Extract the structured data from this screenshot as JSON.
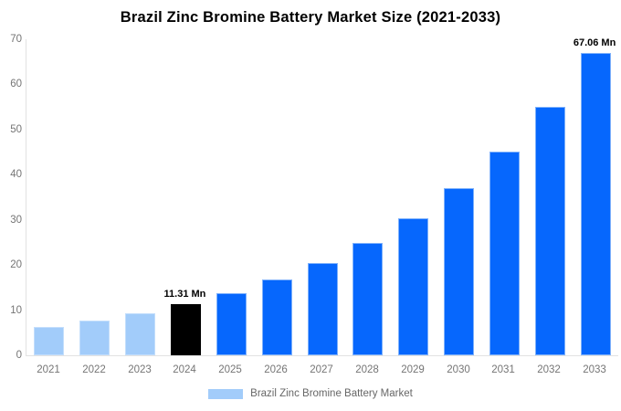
{
  "title": "Brazil Zinc Bromine Battery Market Size (2021-2033)",
  "legend": {
    "label": "Brazil Zinc Bromine Battery Market",
    "swatch_color": "#A2CCFA"
  },
  "colors": {
    "historical_bar": "#A2CCFA",
    "historical_border": "#C3DEFC",
    "forecast_bar": "#0667FD",
    "forecast_border": "#7EB1FB",
    "highlight_bar": "#000000",
    "axis_line": "#E2E2E2",
    "tick_text": "#757575",
    "legend_text": "#666666",
    "title_text": "#000000"
  },
  "chart_data": {
    "type": "bar",
    "title": "Brazil Zinc Bromine Battery Market Size (2021-2033)",
    "series_name": "Brazil Zinc Bromine Battery Market",
    "categories": [
      "2021",
      "2022",
      "2023",
      "2024",
      "2025",
      "2026",
      "2027",
      "2028",
      "2029",
      "2030",
      "2031",
      "2032",
      "2033"
    ],
    "values": [
      6.25,
      7.61,
      9.28,
      11.31,
      13.78,
      16.79,
      20.47,
      24.95,
      30.41,
      37.06,
      45.16,
      55.04,
      67.06
    ],
    "bar_roles": [
      "historical",
      "historical",
      "historical",
      "highlight",
      "forecast",
      "forecast",
      "forecast",
      "forecast",
      "forecast",
      "forecast",
      "forecast",
      "forecast",
      "forecast"
    ],
    "annotations": [
      {
        "index": 3,
        "text": "11.31 Mn"
      },
      {
        "index": 12,
        "text": "67.06 Mn"
      }
    ],
    "xlabel": "",
    "ylabel": "",
    "ylim": [
      0,
      70
    ],
    "ytick_step": 10,
    "yticks": [
      0,
      10,
      20,
      30,
      40,
      50,
      60,
      70
    ],
    "grid": false,
    "legend_position": "bottom",
    "unit": "Mn"
  }
}
